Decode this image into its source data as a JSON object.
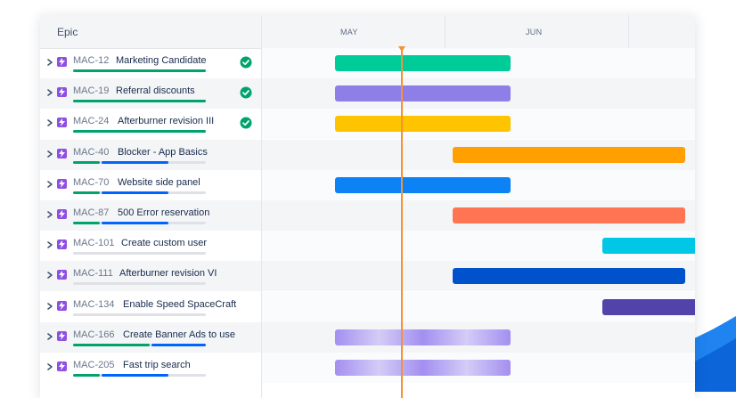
{
  "header": {
    "epic_label": "Epic",
    "months": [
      "MAY",
      "JUN"
    ]
  },
  "colors": {
    "epic_icon": "#904ee2",
    "done": "#00a36c",
    "in_progress": "#0065ff",
    "today_line": "#f79233"
  },
  "epics": [
    {
      "key": "MAC-12",
      "summary": "Marketing Candidate",
      "done": true,
      "progress_done": 1.0,
      "progress_inprogress": 0.0,
      "bar_color": "#00cc99"
    },
    {
      "key": "MAC-19",
      "summary": "Referral discounts",
      "done": true,
      "progress_done": 1.0,
      "progress_inprogress": 0.0,
      "bar_color": "#8f7ee7"
    },
    {
      "key": "MAC-24",
      "summary": "Afterburner revision III",
      "done": true,
      "progress_done": 1.0,
      "progress_inprogress": 0.0,
      "bar_color": "#ffc400"
    },
    {
      "key": "MAC-40",
      "summary": "Blocker - App Basics",
      "done": false,
      "progress_done": 0.2,
      "progress_inprogress": 0.52,
      "bar_color": "#ff9f00"
    },
    {
      "key": "MAC-70",
      "summary": "Website side panel",
      "done": false,
      "progress_done": 0.2,
      "progress_inprogress": 0.52,
      "bar_color": "#0c82f5"
    },
    {
      "key": "MAC-87",
      "summary": "500 Error reservation",
      "done": false,
      "progress_done": 0.2,
      "progress_inprogress": 0.52,
      "bar_color": "#ff7452"
    },
    {
      "key": "MAC-101",
      "summary": "Create custom user",
      "done": false,
      "progress_done": 0.0,
      "progress_inprogress": 0.0,
      "bar_color": "#00c7e6"
    },
    {
      "key": "MAC-111",
      "summary": "Afterburner revision VI",
      "done": false,
      "progress_done": 0.0,
      "progress_inprogress": 0.0,
      "bar_color": "#0052cc"
    },
    {
      "key": "MAC-134",
      "summary": "Enable Speed SpaceCraft",
      "done": false,
      "progress_done": 0.0,
      "progress_inprogress": 0.0,
      "bar_color": "#5243aa"
    },
    {
      "key": "MAC-166",
      "summary": "Create Banner Ads to use",
      "done": false,
      "progress_done": 0.58,
      "progress_inprogress": 0.42,
      "bar_color": "#a38ff0"
    },
    {
      "key": "MAC-205",
      "summary": "Fast trip search",
      "done": false,
      "progress_done": 0.2,
      "progress_inprogress": 0.52,
      "bar_color": "#a38ff0"
    }
  ]
}
